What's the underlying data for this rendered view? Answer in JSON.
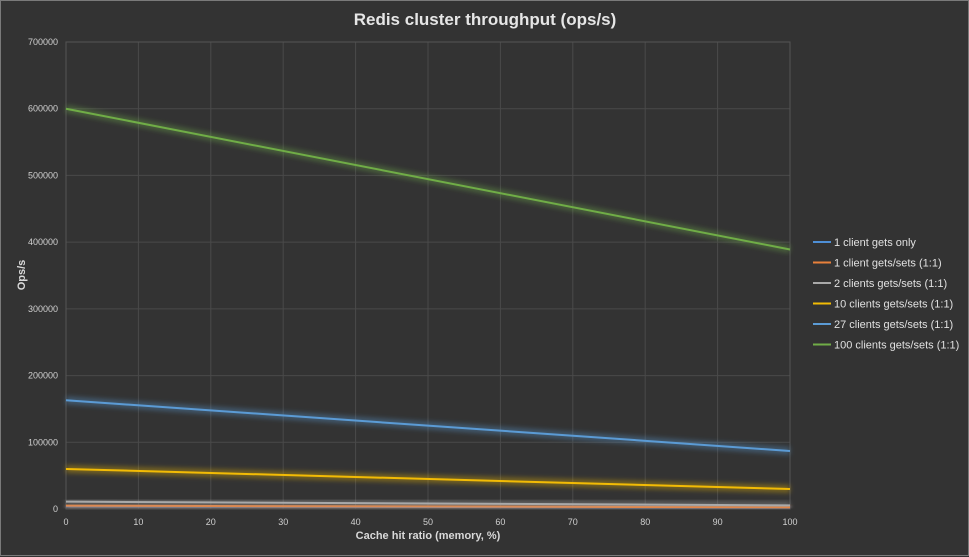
{
  "chart_data": {
    "type": "line",
    "title": "Redis cluster throughput (ops/s)",
    "xlabel": "Cache hit ratio (memory, %)",
    "ylabel": "Ops/s",
    "xlim": [
      0,
      100
    ],
    "ylim": [
      0,
      700000
    ],
    "x_ticks": [
      0,
      10,
      20,
      30,
      40,
      50,
      60,
      70,
      80,
      90,
      100
    ],
    "y_ticks": [
      0,
      100000,
      200000,
      300000,
      400000,
      500000,
      600000,
      700000
    ],
    "grid": true,
    "legend_position": "right",
    "x": [
      0,
      100
    ],
    "series": [
      {
        "name": "1 client gets only",
        "color": "#4e8fd6",
        "values": [
          4000,
          2000
        ]
      },
      {
        "name": "1 client gets/sets (1:1)",
        "color": "#e8803b",
        "values": [
          5000,
          2500
        ]
      },
      {
        "name": "2 clients gets/sets (1:1)",
        "color": "#a9a9a9",
        "values": [
          11000,
          5500
        ]
      },
      {
        "name": "10 clients gets/sets (1:1)",
        "color": "#f2bb05",
        "values": [
          60000,
          30000
        ]
      },
      {
        "name": "27 clients gets/sets (1:1)",
        "color": "#5b9bd5",
        "values": [
          163000,
          87000
        ]
      },
      {
        "name": "100 clients gets/sets (1:1)",
        "color": "#70ad47",
        "values": [
          600000,
          389000
        ]
      }
    ]
  }
}
